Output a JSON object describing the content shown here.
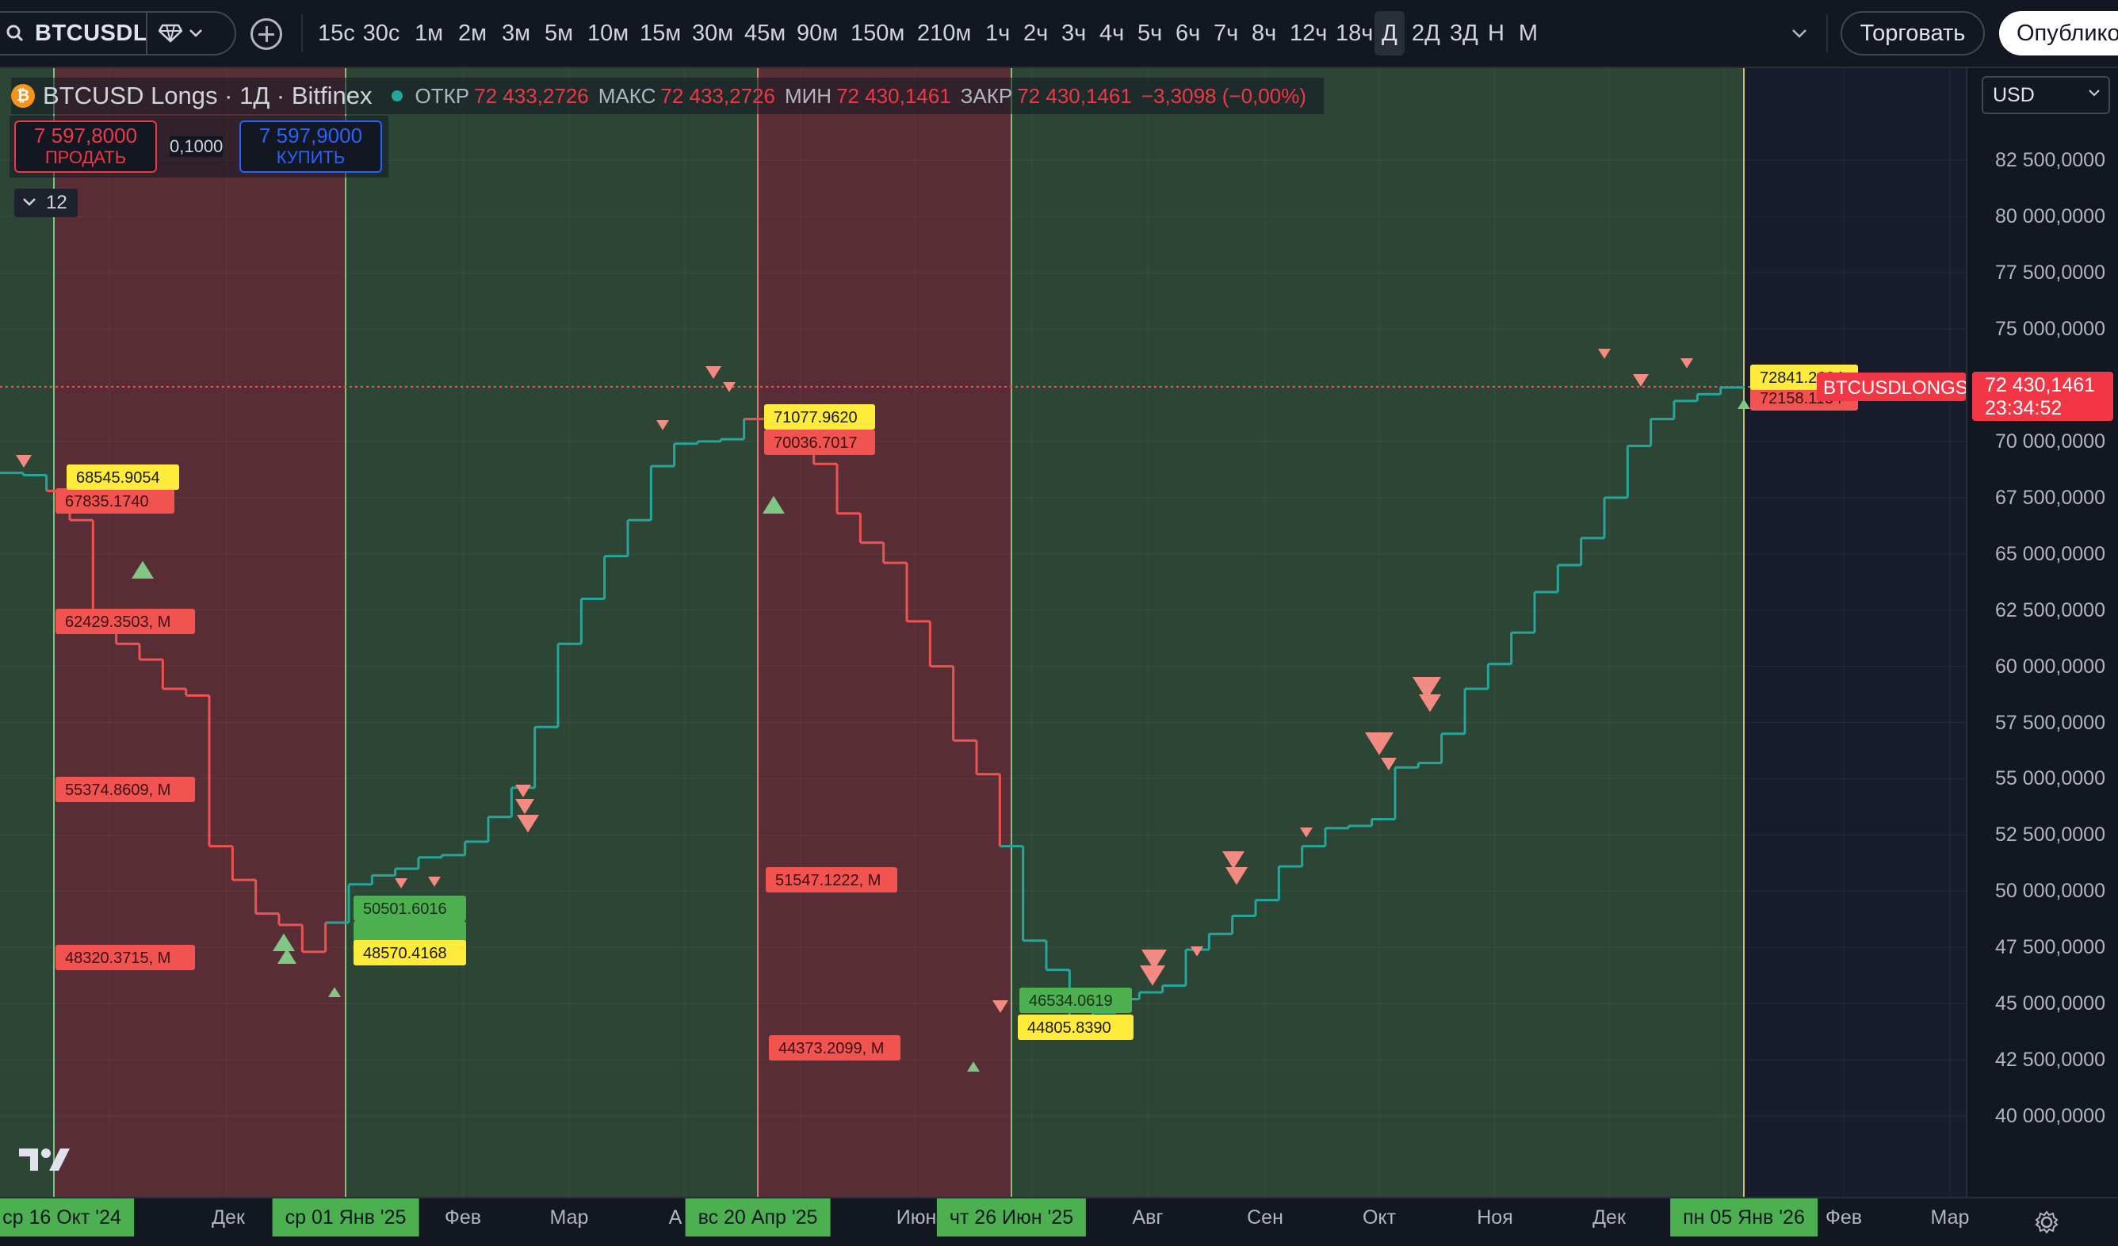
{
  "toolbar": {
    "symbol": "BTCUSDLONGS",
    "intervals": [
      "15с",
      "30с",
      "1м",
      "2м",
      "3м",
      "5м",
      "10м",
      "15м",
      "30м",
      "45м",
      "90м",
      "150м",
      "210м",
      "1ч",
      "2ч",
      "3ч",
      "4ч",
      "5ч",
      "6ч",
      "7ч",
      "8ч",
      "12ч",
      "18ч",
      "Д",
      "2Д",
      "3Д",
      "Н",
      "М"
    ],
    "active_interval": "Д",
    "trade_label": "Торговать",
    "publish_label": "Опубликовать"
  },
  "legend": {
    "title": "BTCUSD Longs · 1Д · Bitfinex",
    "open_label": "ОТКР",
    "open": "72 433,2726",
    "high_label": "МАКС",
    "high": "72 433,2726",
    "low_label": "МИН",
    "low": "72 430,1461",
    "close_label": "ЗАКР",
    "close": "72 430,1461",
    "change": "−3,3098 (−0,00%)"
  },
  "trade": {
    "sell_price": "7 597,8000",
    "sell_label": "ПРОДАТЬ",
    "spread": "0,1000",
    "buy_price": "7 597,9000",
    "buy_label": "КУПИТЬ"
  },
  "indicators_count": "12",
  "currency": "USD",
  "current_price": {
    "value": "72 430,1461",
    "countdown": "23:34:52",
    "symbol_tag": "BTCUSDLONGS"
  },
  "colors": {
    "bg": "#131722",
    "green_zone": "#2e4a36",
    "red_zone": "#5a2c34",
    "up": "#26a69a",
    "down": "#ef5350",
    "label_yellow": "#ffeb3b",
    "label_red": "#f05350",
    "label_green": "#4caf50"
  },
  "price_axis": [
    "82 500,0000",
    "80 000,0000",
    "77 500,0000",
    "75 000,0000",
    "70 000,0000",
    "67 500,0000",
    "65 000,0000",
    "62 500,0000",
    "60 000,0000",
    "57 500,0000",
    "55 000,0000",
    "52 500,0000",
    "50 000,0000",
    "47 500,0000",
    "45 000,0000",
    "42 500,0000",
    "40 000,0000"
  ],
  "time_axis": {
    "labels": [
      "Дек",
      "Фев",
      "Мар",
      "А",
      "Июн",
      "Авг",
      "Сен",
      "Окт",
      "Ноя",
      "Дек",
      "Фев",
      "Мар"
    ],
    "badges": [
      "ср 16 Окт '24",
      "ср 01 Янв '25",
      "вс 20 Апр '25",
      "чт 26 Июн '25",
      "пн 05 Янв '26"
    ]
  },
  "chart_labels": {
    "l1": "68545.9054",
    "l1b": "67835.1740",
    "l2": "62429.3503, M",
    "l3": "55374.8609, M",
    "l4": "48320.3715, M",
    "l5": "50501.6016",
    "l6": "48570.4168",
    "l7": "71077.9620",
    "l8": "70036.7017",
    "l9": "51547.1222, M",
    "l10": "44373.2099, M",
    "l11": "46534.0619",
    "l12": "44805.8390",
    "l13": "72841.2604",
    "l14": "72158.1134"
  },
  "chart_data": {
    "type": "line",
    "series": [
      {
        "values": [
          68.6,
          68.5,
          67.8,
          66.5,
          62.4,
          61.0,
          60.3,
          59.0,
          58.7,
          52.0,
          50.5,
          49.0,
          48.5,
          47.3,
          48.6,
          50.3,
          50.7,
          51.0,
          51.5,
          51.6,
          52.2,
          53.3,
          54.6,
          57.3,
          61.0,
          63.0,
          64.9,
          66.5,
          68.9,
          69.9,
          70.0,
          70.1,
          71.0,
          71.0,
          70.6,
          69.0,
          66.8,
          65.5,
          64.6,
          62.0,
          60.0,
          56.7,
          55.2,
          52.0,
          47.8,
          46.5,
          44.0,
          44.6,
          45.2,
          45.5,
          45.8,
          47.4,
          48.1,
          48.9,
          49.6,
          51.1,
          52.0,
          52.8,
          52.9,
          53.2,
          55.5,
          55.7,
          57.0,
          59.0,
          60.1,
          61.5,
          63.3,
          64.5,
          65.7,
          67.5,
          69.8,
          71.0,
          71.8,
          72.1,
          72.4,
          72.43
        ]
      }
    ],
    "ylim": [
      39000,
      83500
    ]
  }
}
